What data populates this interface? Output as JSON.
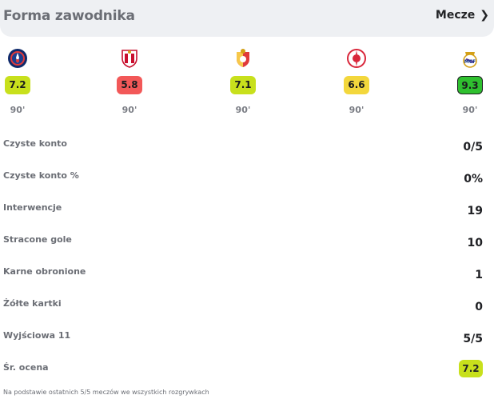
{
  "header": {
    "title": "Forma zawodnika",
    "link_label": "Mecze"
  },
  "matches": [
    {
      "team_icon": "psg-crest-icon",
      "rating": "7.2",
      "rating_color": "#c8e01c",
      "minutes": "90'"
    },
    {
      "team_icon": "sevilla-crest-icon",
      "rating": "5.8",
      "rating_color": "#f25858",
      "minutes": "90'"
    },
    {
      "team_icon": "girona-crest-icon",
      "rating": "7.1",
      "rating_color": "#c8e01c",
      "minutes": "90'"
    },
    {
      "team_icon": "olympiacos-crest-icon",
      "rating": "6.6",
      "rating_color": "#f3d73c",
      "minutes": "90'"
    },
    {
      "team_icon": "real-madrid-crest-icon",
      "rating": "9.3",
      "rating_color": "#2fc02f",
      "minutes": "90'"
    }
  ],
  "stats": [
    {
      "label": "Czyste konto",
      "value": "0/5"
    },
    {
      "label": "Czyste konto %",
      "value": "0%"
    },
    {
      "label": "Interwencje",
      "value": "19"
    },
    {
      "label": "Stracone gole",
      "value": "10"
    },
    {
      "label": "Karne obronione",
      "value": "1"
    },
    {
      "label": "Żółte kartki",
      "value": "0"
    },
    {
      "label": "Wyjściowa 11",
      "value": "5/5"
    }
  ],
  "average": {
    "label": "Śr. ocena",
    "value": "7.2",
    "color": "#c8e01c"
  },
  "footnote": "Na podstawie ostatnich 5/5 meczów we wszystkich rozgrywkach"
}
